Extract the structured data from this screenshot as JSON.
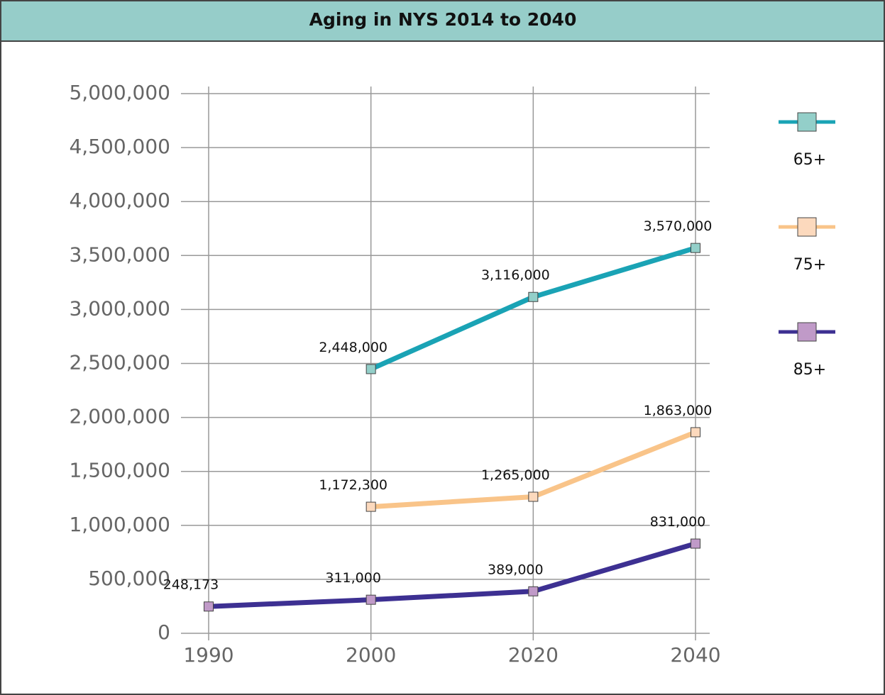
{
  "chart_data": {
    "type": "line",
    "title": "Aging in NYS 2014 to 2040",
    "categories": [
      "1990",
      "2000",
      "2020",
      "2040"
    ],
    "series": [
      {
        "name": "65+",
        "color": "#1aa3b5",
        "marker_color": "#93cfc9",
        "values": [
          null,
          2448000,
          3116000,
          3570000
        ],
        "value_labels": [
          null,
          "2,448,000",
          "3,116,000",
          "3,570,000"
        ]
      },
      {
        "name": "75+",
        "color": "#f9c489",
        "marker_color": "#fcd9bd",
        "values": [
          null,
          1172300,
          1265000,
          1863000
        ],
        "value_labels": [
          null,
          "1,172,300",
          "1,265,000",
          "1,863,000"
        ]
      },
      {
        "name": "85+",
        "color": "#3d3092",
        "marker_color": "#c09ac8",
        "values": [
          248173,
          311000,
          389000,
          831000
        ],
        "value_labels": [
          "248,173",
          "311,000",
          "389,000",
          "831,000"
        ]
      }
    ],
    "ylim": [
      0,
      5000000
    ],
    "yticks": [
      0,
      {
        "value": 500000,
        "label": "500,000"
      },
      {
        "value": 1000000,
        "label": "1,000,000"
      },
      {
        "value": 1500000,
        "label": "1,500,000"
      },
      {
        "value": 2000000,
        "label": "2,000,000"
      },
      {
        "value": 2500000,
        "label": "2,500,000"
      },
      {
        "value": 3000000,
        "label": "3,000,000"
      },
      {
        "value": 3500000,
        "label": "3,500,000"
      },
      {
        "value": 4000000,
        "label": "4,000,000"
      },
      {
        "value": 4500000,
        "label": "4,500,000"
      },
      {
        "value": 5000000,
        "label": "5,000,000"
      }
    ],
    "grid": true,
    "legend": "right"
  }
}
